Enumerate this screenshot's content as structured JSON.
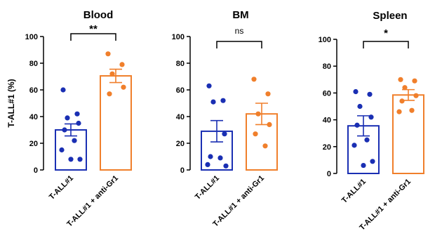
{
  "chart_data": [
    {
      "type": "bar",
      "title": "Blood",
      "ylabel": "T-ALL#1 (%)",
      "ylim": [
        0,
        100
      ],
      "yticks": [
        0,
        20,
        40,
        60,
        80,
        100
      ],
      "categories": [
        "T-ALL#1",
        "T-ALL#1 + anti-Gr1"
      ],
      "values": [
        30,
        70.5
      ],
      "errors": [
        4.5,
        5
      ],
      "points": [
        [
          60,
          42,
          39,
          35,
          30,
          22,
          15,
          8,
          8
        ],
        [
          87,
          79,
          72,
          62,
          57
        ]
      ],
      "significance": "**"
    },
    {
      "type": "bar",
      "title": "BM",
      "ylabel": "",
      "ylim": [
        0,
        100
      ],
      "yticks": [
        0,
        20,
        40,
        60,
        80,
        100
      ],
      "categories": [
        "T-ALL#1",
        "T-ALL#1 + anti-Gr1"
      ],
      "values": [
        29,
        42
      ],
      "errors": [
        8,
        8
      ],
      "points": [
        [
          63,
          52,
          51,
          27,
          10,
          9,
          4,
          3
        ],
        [
          68,
          57,
          42,
          34,
          27,
          18
        ]
      ],
      "significance": "ns"
    },
    {
      "type": "bar",
      "title": "Spleen",
      "ylabel": "",
      "ylim": [
        0,
        100
      ],
      "yticks": [
        0,
        20,
        40,
        60,
        80,
        100
      ],
      "categories": [
        "T-ALL#1",
        "T-ALL#1 + anti-Gr1"
      ],
      "values": [
        35.5,
        58.5
      ],
      "errors": [
        7.5,
        4
      ],
      "points": [
        [
          61,
          59,
          50,
          42,
          36,
          25,
          21,
          9,
          6
        ],
        [
          70,
          69,
          64,
          58,
          54,
          47,
          46
        ]
      ],
      "significance": "*"
    }
  ],
  "colors": {
    "control": "#1a2fb3",
    "treated": "#f07f2b",
    "axis": "#000000"
  }
}
